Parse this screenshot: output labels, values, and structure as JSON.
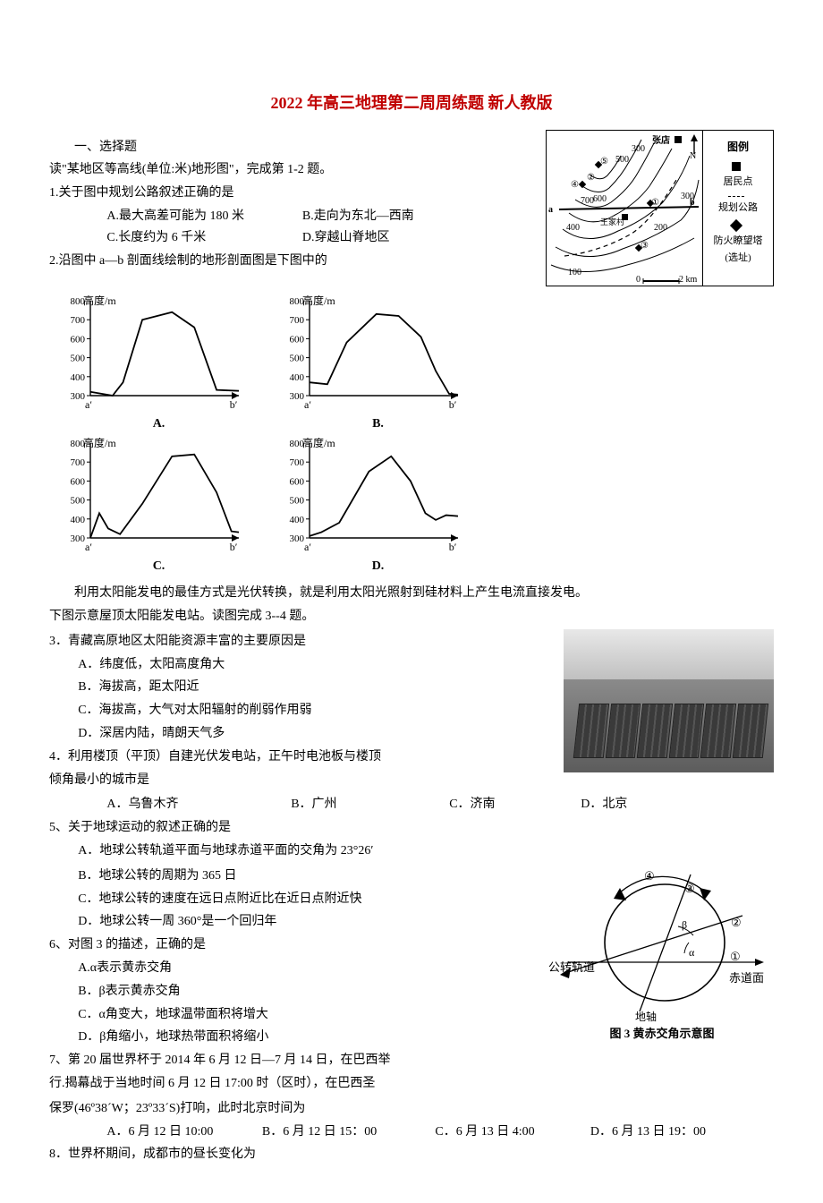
{
  "title": "2022 年高三地理第二周周练题 新人教版",
  "section1": "一、选择题",
  "passage1": "读\"某地区等高线(单位:米)地形图\"，完成第 1-2 题。",
  "q1": {
    "stem": "1.关于图中规划公路叙述正确的是",
    "a": "A.最大高差可能为 180 米",
    "b": "B.走向为东北—西南",
    "c": "C.长度约为 6 千米",
    "d": "D.穿越山脊地区"
  },
  "q2": {
    "stem": "2.沿图中 a—b 剖面线绘制的地形剖面图是下图中的"
  },
  "map": {
    "zhangdian": "张店",
    "n_arrow": "N",
    "legend_title": "图例",
    "legend_res": "居民点",
    "legend_road": "规划公路",
    "legend_tower1": "防火瞭望塔",
    "legend_tower2": "(选址)",
    "scale0": "0",
    "scaleK": "2 km",
    "wangjia": "王家村",
    "a_label": "a",
    "b_label": "b",
    "n100": "100",
    "n200": "200",
    "n300a": "300",
    "n300b": "300",
    "n400": "400",
    "n500": "500",
    "n600": "600",
    "n700": "700",
    "c1": "①",
    "c2": "②",
    "c3": "③",
    "c4": "④",
    "c5": "⑤"
  },
  "charts": {
    "ylabel": "高度/m",
    "ticks": [
      300,
      400,
      500,
      600,
      700,
      800
    ],
    "x_a": "a′",
    "x_b": "b′",
    "A": {
      "label": "A.",
      "points": [
        0,
        320,
        15,
        300,
        22,
        370,
        35,
        700,
        55,
        740,
        70,
        660,
        85,
        330,
        100,
        325
      ]
    },
    "B": {
      "label": "B.",
      "points": [
        0,
        370,
        12,
        360,
        25,
        580,
        45,
        730,
        60,
        720,
        75,
        610,
        85,
        430,
        94,
        310,
        100,
        305
      ]
    },
    "C": {
      "label": "C.",
      "points": [
        0,
        300,
        6,
        430,
        12,
        350,
        20,
        320,
        35,
        480,
        55,
        730,
        70,
        740,
        85,
        540,
        95,
        335,
        100,
        330
      ]
    },
    "D": {
      "label": "D.",
      "points": [
        0,
        310,
        8,
        330,
        20,
        380,
        40,
        650,
        55,
        730,
        68,
        600,
        78,
        430,
        85,
        395,
        92,
        420,
        100,
        415
      ]
    },
    "axis_color": "#000",
    "line_color": "#000",
    "ylim": [
      300,
      800
    ]
  },
  "passage2a": "利用太阳能发电的最佳方式是光伏转换，就是利用太阳光照射到硅材料上产生电流直接发电。",
  "passage2b": "下图示意屋顶太阳能发电站。读图完成 3--4 题。",
  "q3": {
    "stem": "3．青藏高原地区太阳能资源丰富的主要原因是",
    "a": "A．纬度低，太阳高度角大",
    "b": "B．海拔高，距太阳近",
    "c": "C．海拔高，大气对太阳辐射的削弱作用弱",
    "d": "D．深居内陆，晴朗天气多"
  },
  "q4": {
    "stem_1": "4．利用楼顶（平顶）自建光伏发电站，正午时电池板与楼顶",
    "stem_2": "倾角最小的城市是",
    "a": "A．乌鲁木齐",
    "b": "B．广州",
    "c": "C．济南",
    "d": "D．北京"
  },
  "q5": {
    "stem": "5、关于地球运动的叙述正确的是",
    "a": "A．地球公转轨道平面与地球赤道平面的交角为 23°26′",
    "b": "B．地球公转的周期为 365 日",
    "c": "C．地球公转的速度在远日点附近比在近日点附近快",
    "d": "D．地球公转一周 360°是一个回归年"
  },
  "q6": {
    "stem": "6、对图 3 的描述，正确的是",
    "a": "A.α表示黄赤交角",
    "b": "B．β表示黄赤交角",
    "c": "C．α角变大，地球温带面积将增大",
    "d": "D．β角缩小，地球热带面积将缩小"
  },
  "hcj": {
    "orbit": "公转轨道",
    "equator": "赤道面",
    "axis": "地轴",
    "alpha": "α",
    "beta": "β",
    "c1": "①",
    "c2": "②",
    "c3": "③",
    "c4": "④",
    "caption": "图 3 黄赤交角示意图"
  },
  "q7": {
    "line1": "7、第 20 届世界杯于 2014 年 6 月 12 日—7 月 14 日，在巴西举",
    "line2": "行.揭幕战于当地时间 6 月 12 日 17:00 时（区时），在巴西圣",
    "line3": "保罗(46º38´W；23º33´S)打响，此时北京时间为",
    "a": "A．6 月 12 日 10:00",
    "b": "B．6 月 12 日 15：00",
    "c": "C．6 月 13 日 4:00",
    "d": "D．6 月 13 日 19：00"
  },
  "q8": {
    "stem": "8．世界杯期间，成都市的昼长变化为"
  }
}
